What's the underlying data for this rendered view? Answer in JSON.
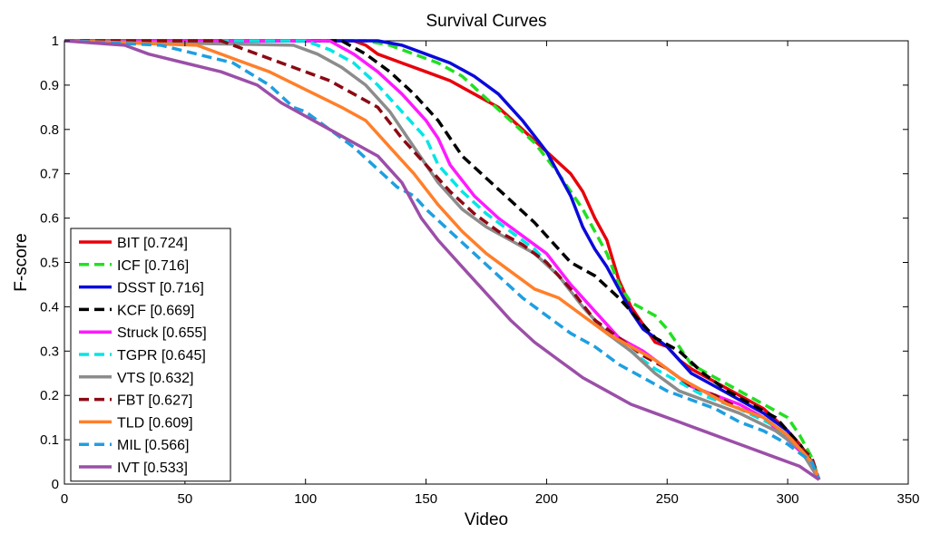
{
  "chart_data": {
    "type": "line",
    "title": "Survival Curves",
    "xlabel": "Video",
    "ylabel": "F-score",
    "xlim": [
      0,
      350
    ],
    "ylim": [
      0,
      1
    ],
    "xticks": [
      0,
      50,
      100,
      150,
      200,
      250,
      300,
      350
    ],
    "xtick_labels": [
      "0",
      "50",
      "100",
      "150",
      "200",
      "250",
      "300",
      "350"
    ],
    "yticks": [
      0,
      0.1,
      0.2,
      0.3,
      0.4,
      0.5,
      0.6,
      0.7,
      0.8,
      0.9,
      1
    ],
    "ytick_labels": [
      "0",
      "0.1",
      "0.2",
      "0.3",
      "0.4",
      "0.5",
      "0.6",
      "0.7",
      "0.8",
      "0.9",
      "1"
    ],
    "grid": false,
    "legend_position": "bottom-left",
    "series": [
      {
        "name": "BIT [0.724]",
        "color": "#e8000b",
        "dash": "solid",
        "points": [
          [
            0,
            1
          ],
          [
            120,
            1
          ],
          [
            125,
            0.99
          ],
          [
            130,
            0.97
          ],
          [
            140,
            0.95
          ],
          [
            150,
            0.93
          ],
          [
            160,
            0.91
          ],
          [
            170,
            0.88
          ],
          [
            180,
            0.85
          ],
          [
            190,
            0.8
          ],
          [
            200,
            0.75
          ],
          [
            210,
            0.7
          ],
          [
            215,
            0.66
          ],
          [
            220,
            0.6
          ],
          [
            225,
            0.55
          ],
          [
            230,
            0.46
          ],
          [
            235,
            0.4
          ],
          [
            240,
            0.36
          ],
          [
            245,
            0.32
          ],
          [
            250,
            0.31
          ],
          [
            255,
            0.28
          ],
          [
            260,
            0.26
          ],
          [
            270,
            0.23
          ],
          [
            280,
            0.2
          ],
          [
            290,
            0.17
          ],
          [
            300,
            0.12
          ],
          [
            305,
            0.09
          ],
          [
            310,
            0.05
          ],
          [
            313,
            0.01
          ]
        ]
      },
      {
        "name": "ICF [0.716]",
        "color": "#22e022",
        "dash": "dashed",
        "points": [
          [
            0,
            1
          ],
          [
            125,
            1
          ],
          [
            135,
            0.99
          ],
          [
            145,
            0.97
          ],
          [
            155,
            0.95
          ],
          [
            165,
            0.92
          ],
          [
            175,
            0.87
          ],
          [
            185,
            0.82
          ],
          [
            195,
            0.77
          ],
          [
            205,
            0.7
          ],
          [
            215,
            0.62
          ],
          [
            225,
            0.52
          ],
          [
            230,
            0.45
          ],
          [
            235,
            0.41
          ],
          [
            245,
            0.38
          ],
          [
            250,
            0.35
          ],
          [
            255,
            0.31
          ],
          [
            260,
            0.27
          ],
          [
            270,
            0.24
          ],
          [
            280,
            0.21
          ],
          [
            290,
            0.18
          ],
          [
            300,
            0.15
          ],
          [
            305,
            0.11
          ],
          [
            310,
            0.06
          ],
          [
            313,
            0.01
          ]
        ]
      },
      {
        "name": "DSST [0.716]",
        "color": "#0a0adc",
        "dash": "solid",
        "points": [
          [
            0,
            1
          ],
          [
            130,
            1
          ],
          [
            140,
            0.99
          ],
          [
            150,
            0.97
          ],
          [
            160,
            0.95
          ],
          [
            170,
            0.92
          ],
          [
            180,
            0.88
          ],
          [
            190,
            0.82
          ],
          [
            200,
            0.75
          ],
          [
            205,
            0.7
          ],
          [
            210,
            0.65
          ],
          [
            215,
            0.58
          ],
          [
            220,
            0.53
          ],
          [
            225,
            0.49
          ],
          [
            230,
            0.44
          ],
          [
            235,
            0.39
          ],
          [
            240,
            0.35
          ],
          [
            245,
            0.33
          ],
          [
            250,
            0.31
          ],
          [
            255,
            0.28
          ],
          [
            260,
            0.25
          ],
          [
            270,
            0.22
          ],
          [
            280,
            0.19
          ],
          [
            290,
            0.16
          ],
          [
            300,
            0.12
          ],
          [
            305,
            0.08
          ],
          [
            310,
            0.05
          ],
          [
            313,
            0.01
          ]
        ]
      },
      {
        "name": "KCF [0.669]",
        "color": "#000000",
        "dash": "dashed",
        "points": [
          [
            0,
            1
          ],
          [
            115,
            1
          ],
          [
            125,
            0.97
          ],
          [
            135,
            0.93
          ],
          [
            145,
            0.88
          ],
          [
            155,
            0.82
          ],
          [
            165,
            0.74
          ],
          [
            175,
            0.69
          ],
          [
            185,
            0.64
          ],
          [
            195,
            0.59
          ],
          [
            205,
            0.53
          ],
          [
            210,
            0.5
          ],
          [
            220,
            0.47
          ],
          [
            230,
            0.42
          ],
          [
            240,
            0.36
          ],
          [
            245,
            0.33
          ],
          [
            255,
            0.3
          ],
          [
            265,
            0.25
          ],
          [
            275,
            0.21
          ],
          [
            285,
            0.18
          ],
          [
            295,
            0.15
          ],
          [
            305,
            0.09
          ],
          [
            310,
            0.05
          ],
          [
            313,
            0.01
          ]
        ]
      },
      {
        "name": "Struck [0.655]",
        "color": "#ff1aff",
        "dash": "solid",
        "points": [
          [
            0,
            1
          ],
          [
            110,
            1
          ],
          [
            120,
            0.97
          ],
          [
            130,
            0.93
          ],
          [
            140,
            0.88
          ],
          [
            150,
            0.82
          ],
          [
            155,
            0.78
          ],
          [
            160,
            0.72
          ],
          [
            170,
            0.65
          ],
          [
            180,
            0.6
          ],
          [
            190,
            0.56
          ],
          [
            200,
            0.52
          ],
          [
            210,
            0.45
          ],
          [
            220,
            0.39
          ],
          [
            230,
            0.33
          ],
          [
            240,
            0.3
          ],
          [
            250,
            0.26
          ],
          [
            260,
            0.22
          ],
          [
            270,
            0.2
          ],
          [
            280,
            0.18
          ],
          [
            290,
            0.15
          ],
          [
            300,
            0.1
          ],
          [
            310,
            0.05
          ],
          [
            313,
            0.01
          ]
        ]
      },
      {
        "name": "TGPR [0.645]",
        "color": "#00e5e5",
        "dash": "dashed",
        "points": [
          [
            0,
            1
          ],
          [
            100,
            1
          ],
          [
            110,
            0.98
          ],
          [
            120,
            0.95
          ],
          [
            130,
            0.9
          ],
          [
            140,
            0.84
          ],
          [
            150,
            0.78
          ],
          [
            155,
            0.72
          ],
          [
            165,
            0.66
          ],
          [
            175,
            0.61
          ],
          [
            185,
            0.57
          ],
          [
            195,
            0.53
          ],
          [
            205,
            0.47
          ],
          [
            215,
            0.4
          ],
          [
            225,
            0.34
          ],
          [
            235,
            0.3
          ],
          [
            245,
            0.26
          ],
          [
            255,
            0.23
          ],
          [
            265,
            0.2
          ],
          [
            280,
            0.17
          ],
          [
            295,
            0.13
          ],
          [
            305,
            0.08
          ],
          [
            310,
            0.05
          ],
          [
            313,
            0.01
          ]
        ]
      },
      {
        "name": "VTS [0.632]",
        "color": "#8c8c8c",
        "dash": "solid",
        "points": [
          [
            0,
            1
          ],
          [
            95,
            0.99
          ],
          [
            105,
            0.97
          ],
          [
            115,
            0.94
          ],
          [
            125,
            0.9
          ],
          [
            135,
            0.84
          ],
          [
            145,
            0.76
          ],
          [
            155,
            0.68
          ],
          [
            165,
            0.62
          ],
          [
            175,
            0.58
          ],
          [
            185,
            0.55
          ],
          [
            195,
            0.52
          ],
          [
            205,
            0.47
          ],
          [
            215,
            0.4
          ],
          [
            225,
            0.34
          ],
          [
            235,
            0.3
          ],
          [
            245,
            0.25
          ],
          [
            255,
            0.21
          ],
          [
            265,
            0.19
          ],
          [
            280,
            0.16
          ],
          [
            295,
            0.12
          ],
          [
            305,
            0.08
          ],
          [
            313,
            0.01
          ]
        ]
      },
      {
        "name": "FBT [0.627]",
        "color": "#8b0a14",
        "dash": "dashed",
        "points": [
          [
            0,
            1
          ],
          [
            65,
            1
          ],
          [
            75,
            0.98
          ],
          [
            85,
            0.96
          ],
          [
            100,
            0.93
          ],
          [
            110,
            0.91
          ],
          [
            120,
            0.88
          ],
          [
            130,
            0.85
          ],
          [
            140,
            0.78
          ],
          [
            150,
            0.72
          ],
          [
            160,
            0.66
          ],
          [
            170,
            0.61
          ],
          [
            180,
            0.57
          ],
          [
            190,
            0.54
          ],
          [
            200,
            0.5
          ],
          [
            210,
            0.44
          ],
          [
            220,
            0.37
          ],
          [
            230,
            0.33
          ],
          [
            240,
            0.29
          ],
          [
            250,
            0.26
          ],
          [
            260,
            0.22
          ],
          [
            270,
            0.2
          ],
          [
            280,
            0.17
          ],
          [
            290,
            0.15
          ],
          [
            300,
            0.11
          ],
          [
            310,
            0.06
          ],
          [
            313,
            0.01
          ]
        ]
      },
      {
        "name": "TLD [0.609]",
        "color": "#ff7f2a",
        "dash": "solid",
        "points": [
          [
            0,
            1
          ],
          [
            55,
            0.99
          ],
          [
            70,
            0.96
          ],
          [
            85,
            0.93
          ],
          [
            100,
            0.89
          ],
          [
            115,
            0.85
          ],
          [
            125,
            0.82
          ],
          [
            135,
            0.76
          ],
          [
            145,
            0.7
          ],
          [
            155,
            0.63
          ],
          [
            165,
            0.57
          ],
          [
            175,
            0.52
          ],
          [
            185,
            0.48
          ],
          [
            195,
            0.44
          ],
          [
            205,
            0.42
          ],
          [
            215,
            0.38
          ],
          [
            225,
            0.34
          ],
          [
            235,
            0.31
          ],
          [
            245,
            0.28
          ],
          [
            255,
            0.24
          ],
          [
            265,
            0.21
          ],
          [
            275,
            0.18
          ],
          [
            290,
            0.15
          ],
          [
            300,
            0.11
          ],
          [
            310,
            0.05
          ],
          [
            313,
            0.01
          ]
        ]
      },
      {
        "name": "MIL [0.566]",
        "color": "#1f9fe0",
        "dash": "dashed",
        "points": [
          [
            0,
            1
          ],
          [
            40,
            0.99
          ],
          [
            55,
            0.97
          ],
          [
            70,
            0.95
          ],
          [
            85,
            0.9
          ],
          [
            95,
            0.85
          ],
          [
            100,
            0.84
          ],
          [
            110,
            0.8
          ],
          [
            120,
            0.76
          ],
          [
            130,
            0.71
          ],
          [
            138,
            0.67
          ],
          [
            145,
            0.65
          ],
          [
            150,
            0.62
          ],
          [
            160,
            0.57
          ],
          [
            170,
            0.52
          ],
          [
            180,
            0.47
          ],
          [
            190,
            0.42
          ],
          [
            200,
            0.38
          ],
          [
            210,
            0.34
          ],
          [
            220,
            0.31
          ],
          [
            230,
            0.27
          ],
          [
            240,
            0.24
          ],
          [
            250,
            0.21
          ],
          [
            260,
            0.19
          ],
          [
            270,
            0.17
          ],
          [
            280,
            0.14
          ],
          [
            290,
            0.12
          ],
          [
            300,
            0.09
          ],
          [
            310,
            0.05
          ],
          [
            313,
            0.01
          ]
        ]
      },
      {
        "name": "IVT [0.533]",
        "color": "#9b4fa8",
        "dash": "solid",
        "points": [
          [
            0,
            1
          ],
          [
            25,
            0.99
          ],
          [
            35,
            0.97
          ],
          [
            50,
            0.95
          ],
          [
            65,
            0.93
          ],
          [
            80,
            0.9
          ],
          [
            90,
            0.86
          ],
          [
            100,
            0.83
          ],
          [
            110,
            0.8
          ],
          [
            120,
            0.77
          ],
          [
            130,
            0.74
          ],
          [
            135,
            0.71
          ],
          [
            140,
            0.68
          ],
          [
            148,
            0.6
          ],
          [
            155,
            0.55
          ],
          [
            165,
            0.49
          ],
          [
            175,
            0.43
          ],
          [
            185,
            0.37
          ],
          [
            195,
            0.32
          ],
          [
            205,
            0.28
          ],
          [
            215,
            0.24
          ],
          [
            225,
            0.21
          ],
          [
            235,
            0.18
          ],
          [
            245,
            0.16
          ],
          [
            255,
            0.14
          ],
          [
            265,
            0.12
          ],
          [
            275,
            0.1
          ],
          [
            285,
            0.08
          ],
          [
            295,
            0.06
          ],
          [
            305,
            0.04
          ],
          [
            313,
            0.01
          ]
        ]
      }
    ]
  }
}
